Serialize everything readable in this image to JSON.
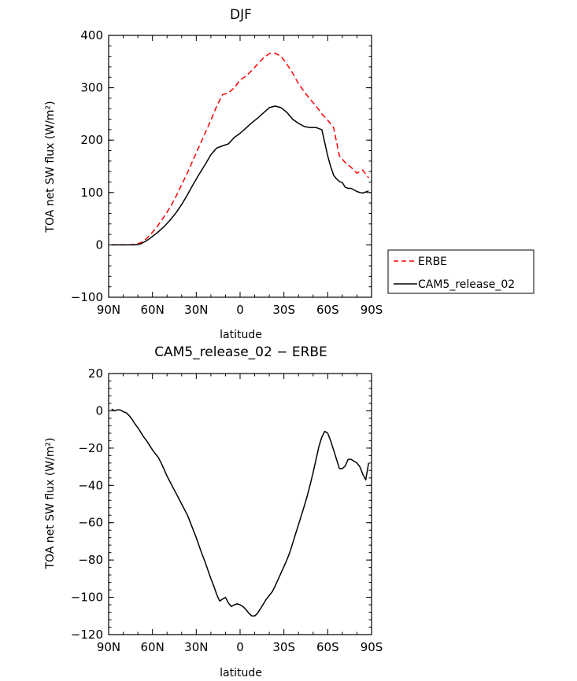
{
  "chart_data": [
    {
      "type": "line",
      "title": "DJF",
      "xlabel": "latitude",
      "ylabel": "TOA net SW flux (W/m²)",
      "xlim": [
        90,
        -90
      ],
      "ylim": [
        -100,
        400
      ],
      "xticks": [
        90,
        60,
        30,
        0,
        -30,
        -60,
        -90
      ],
      "xtick_labels": [
        "90N",
        "60N",
        "30N",
        "0",
        "30S",
        "60S",
        "90S"
      ],
      "yticks": [
        -100,
        0,
        100,
        200,
        300,
        400
      ],
      "ytick_labels": [
        "−100",
        "0",
        "100",
        "200",
        "300",
        "400"
      ],
      "legend_position": "right",
      "series": [
        {
          "name": "ERBE",
          "color": "#ff0000",
          "dash": "dashed",
          "x": [
            88,
            84,
            80,
            76,
            72,
            68,
            64,
            60,
            56,
            52,
            48,
            44,
            40,
            36,
            32,
            28,
            24,
            20,
            16,
            12,
            8,
            4,
            0,
            -4,
            -8,
            -12,
            -16,
            -20,
            -24,
            -28,
            -32,
            -36,
            -40,
            -44,
            -48,
            -52,
            -56,
            -60,
            -64,
            -68,
            -72,
            -76,
            -80,
            -84,
            -88
          ],
          "y": [
            0,
            0,
            0,
            0,
            1,
            4,
            12,
            24,
            38,
            54,
            71,
            92,
            115,
            138,
            163,
            188,
            213,
            238,
            265,
            287,
            290,
            300,
            315,
            322,
            333,
            345,
            357,
            365,
            366,
            360,
            345,
            328,
            308,
            292,
            278,
            265,
            250,
            238,
            224,
            170,
            157,
            148,
            137,
            143,
            128
          ]
        },
        {
          "name": "CAM5_release_02",
          "color": "#000000",
          "dash": "solid",
          "x": [
            88,
            84,
            80,
            76,
            72,
            68,
            64,
            60,
            56,
            52,
            48,
            44,
            40,
            36,
            32,
            28,
            24,
            20,
            16,
            12,
            8,
            4,
            0,
            -4,
            -8,
            -12,
            -16,
            -20,
            -24,
            -28,
            -32,
            -36,
            -40,
            -44,
            -48,
            -52,
            -56,
            -60,
            -62,
            -64,
            -66,
            -68,
            -70,
            -72,
            -74,
            -76,
            -78,
            -80,
            -82,
            -84,
            -86,
            -88
          ],
          "y": [
            0,
            0,
            0,
            0,
            0,
            2,
            8,
            16,
            25,
            35,
            47,
            61,
            77,
            96,
            116,
            135,
            153,
            172,
            185,
            189,
            193,
            205,
            213,
            223,
            233,
            242,
            252,
            262,
            265,
            262,
            253,
            240,
            232,
            226,
            224,
            224,
            220,
            170,
            150,
            133,
            126,
            121,
            119,
            110,
            108,
            108,
            105,
            102,
            100,
            99,
            101,
            103
          ]
        }
      ]
    },
    {
      "type": "line",
      "title": "CAM5_release_02 − ERBE",
      "xlabel": "latitude",
      "ylabel": "TOA net SW flux (W/m²)",
      "xlim": [
        90,
        -90
      ],
      "ylim": [
        -120,
        20
      ],
      "xticks": [
        90,
        60,
        30,
        0,
        -30,
        -60,
        -90
      ],
      "xtick_labels": [
        "90N",
        "60N",
        "30N",
        "0",
        "30S",
        "60S",
        "90S"
      ],
      "yticks": [
        -120,
        -100,
        -80,
        -60,
        -40,
        -20,
        0,
        20
      ],
      "ytick_labels": [
        "−120",
        "−100",
        "−80",
        "−60",
        "−40",
        "−20",
        "0",
        "20"
      ],
      "series": [
        {
          "name": "CAM5_release_02 − ERBE",
          "color": "#000000",
          "dash": "solid",
          "x": [
            88,
            86,
            84,
            82,
            80,
            78,
            76,
            74,
            72,
            70,
            68,
            66,
            64,
            62,
            60,
            58,
            56,
            54,
            52,
            50,
            48,
            46,
            44,
            42,
            40,
            38,
            36,
            34,
            32,
            30,
            28,
            26,
            24,
            22,
            20,
            18,
            16,
            14,
            12,
            10,
            8,
            6,
            4,
            2,
            0,
            -2,
            -4,
            -6,
            -8,
            -10,
            -12,
            -14,
            -16,
            -18,
            -20,
            -22,
            -24,
            -26,
            -28,
            -30,
            -32,
            -34,
            -36,
            -38,
            -40,
            -42,
            -44,
            -46,
            -48,
            -50,
            -52,
            -54,
            -56,
            -58,
            -60,
            -62,
            -64,
            -66,
            -68,
            -70,
            -72,
            -74,
            -76,
            -78,
            -80,
            -82,
            -84,
            -86,
            -88
          ],
          "y": [
            1,
            0,
            0.5,
            0.5,
            -0.5,
            -1,
            -2.5,
            -4.5,
            -7,
            -9,
            -11.5,
            -14,
            -16,
            -18.5,
            -21,
            -23,
            -25,
            -28,
            -31.5,
            -35,
            -38,
            -41,
            -44,
            -47,
            -50,
            -53,
            -56,
            -60,
            -64,
            -68,
            -72.5,
            -77,
            -81,
            -85.5,
            -90,
            -94,
            -98.5,
            -102,
            -101,
            -100,
            -103,
            -105,
            -104,
            -103.5,
            -104,
            -105,
            -106.5,
            -108.5,
            -110,
            -110,
            -108.5,
            -106,
            -103.5,
            -101,
            -99,
            -97,
            -94,
            -90.5,
            -87,
            -83.5,
            -80,
            -76,
            -71,
            -66,
            -61,
            -56,
            -51,
            -45.5,
            -39.5,
            -33,
            -26,
            -19,
            -14,
            -11,
            -12,
            -16,
            -21,
            -26,
            -31,
            -31,
            -29.5,
            -26,
            -26,
            -27,
            -28,
            -30,
            -34,
            -37,
            -28
          ]
        }
      ]
    }
  ]
}
